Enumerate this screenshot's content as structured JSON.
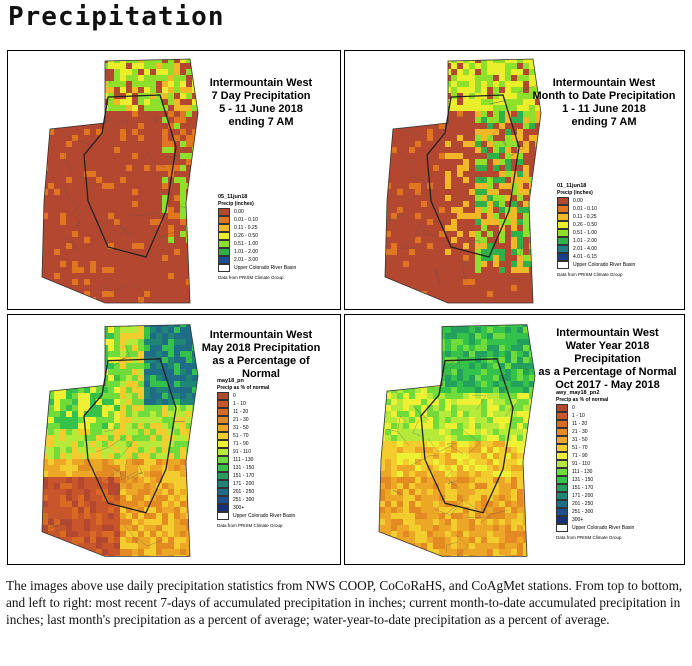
{
  "page_title": "Precipitation",
  "panels": [
    {
      "title": [
        "Intermountain West",
        "7 Day Precipitation",
        "5 - 11 June 2018",
        "ending 7 AM"
      ],
      "legend_title": "05_11jun18",
      "legend_subtitle": "Precip (inches)",
      "scheme": "dry",
      "legend": [
        {
          "label": "0.00",
          "color": "#b4472f"
        },
        {
          "label": "0.01 - 0.10",
          "color": "#e0761f"
        },
        {
          "label": "0.11 - 0.25",
          "color": "#f2b827"
        },
        {
          "label": "0.26 - 0.50",
          "color": "#eaee2b"
        },
        {
          "label": "0.51 - 1.00",
          "color": "#8ee02b"
        },
        {
          "label": "1.01 - 2.00",
          "color": "#2fb04a"
        },
        {
          "label": "2.01 - 3.00",
          "color": "#1a4f96"
        }
      ]
    },
    {
      "title": [
        "Intermountain West",
        "Month to Date Precipitation",
        "1 - 11 June 2018",
        "ending 7 AM"
      ],
      "legend_title": "01_11jun18",
      "legend_subtitle": "Precip (inches)",
      "scheme": "dry2",
      "legend": [
        {
          "label": "0.00",
          "color": "#b4472f"
        },
        {
          "label": "0.01 - 0.10",
          "color": "#e0761f"
        },
        {
          "label": "0.11 - 0.25",
          "color": "#f2b827"
        },
        {
          "label": "0.26 - 0.50",
          "color": "#eaee2b"
        },
        {
          "label": "0.51 - 1.00",
          "color": "#8ee02b"
        },
        {
          "label": "1.01 - 2.00",
          "color": "#2fb04a"
        },
        {
          "label": "2.01 - 4.00",
          "color": "#1f7f86"
        },
        {
          "label": "4.01 - 6.15",
          "color": "#1a3f8e"
        }
      ]
    },
    {
      "title": [
        "Intermountain West",
        "May 2018 Precipitation",
        "as a Percentage of Normal"
      ],
      "legend_title": "may18_pn",
      "legend_subtitle": "Precip as % of normal",
      "scheme": "may",
      "legend": [
        {
          "label": "0",
          "color": "#b4472f"
        },
        {
          "label": "1 - 10",
          "color": "#c9562a"
        },
        {
          "label": "11 - 20",
          "color": "#d86a22"
        },
        {
          "label": "21 - 30",
          "color": "#e38a22"
        },
        {
          "label": "31 - 50",
          "color": "#eda727"
        },
        {
          "label": "51 - 70",
          "color": "#f3cd2d"
        },
        {
          "label": "71 - 90",
          "color": "#eef034"
        },
        {
          "label": "91 - 110",
          "color": "#b5e93a"
        },
        {
          "label": "111 - 130",
          "color": "#6fdc3c"
        },
        {
          "label": "131 - 150",
          "color": "#35c24a"
        },
        {
          "label": "151 - 170",
          "color": "#239f5e"
        },
        {
          "label": "171 - 200",
          "color": "#1f8676"
        },
        {
          "label": "201 - 250",
          "color": "#1e6c86"
        },
        {
          "label": "251 - 300",
          "color": "#1d4f91"
        },
        {
          "label": "300+",
          "color": "#17307a"
        }
      ]
    },
    {
      "title": [
        "Intermountain West",
        "Water Year 2018 Precipitation",
        "as a Percentage of Normal",
        "Oct 2017 - May 2018"
      ],
      "legend_title": "awy_may18_pn2",
      "legend_subtitle": "Precip as % of normal",
      "scheme": "wy",
      "legend": [
        {
          "label": "0",
          "color": "#b4472f"
        },
        {
          "label": "1 - 10",
          "color": "#c9562a"
        },
        {
          "label": "11 - 20",
          "color": "#d86a22"
        },
        {
          "label": "21 - 30",
          "color": "#e38a22"
        },
        {
          "label": "31 - 50",
          "color": "#eda727"
        },
        {
          "label": "51 - 70",
          "color": "#f3cd2d"
        },
        {
          "label": "71 - 90",
          "color": "#eef034"
        },
        {
          "label": "91 - 110",
          "color": "#b5e93a"
        },
        {
          "label": "111 - 130",
          "color": "#6fdc3c"
        },
        {
          "label": "131 - 150",
          "color": "#35c24a"
        },
        {
          "label": "151 - 170",
          "color": "#239f5e"
        },
        {
          "label": "171 - 200",
          "color": "#1f8676"
        },
        {
          "label": "201 - 250",
          "color": "#1e6c86"
        },
        {
          "label": "251 - 300",
          "color": "#1d4f91"
        },
        {
          "label": "300+",
          "color": "#17307a"
        }
      ]
    }
  ],
  "legend_basin_label": "Upper Colorado River Basin",
  "legend_source": "Data from PRISM Climate Group",
  "caption": "The images above use daily precipitation statistics from NWS COOP, CoCoRaHS, and CoAgMet stations. From top to bottom, and left to right: most recent 7-days of accumulated precipitation in inches; current month-to-date accumulated precipitation in inches; last month's precipitation as a percent of average; water-year-to-date precipitation as a percent of average."
}
